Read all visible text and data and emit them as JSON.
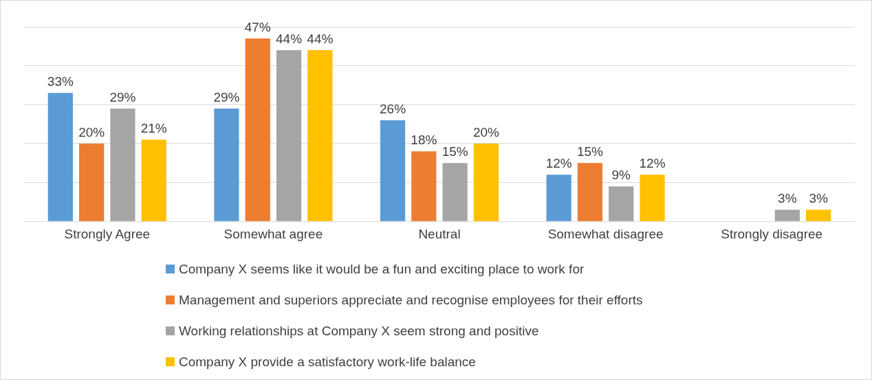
{
  "chart_data": {
    "type": "bar",
    "categories": [
      "Strongly Agree",
      "Somewhat agree",
      "Neutral",
      "Somewhat disagree",
      "Strongly disagree"
    ],
    "series": [
      {
        "name": "Company X seems like it would be a fun and exciting place to work for",
        "color": "#5b9bd5",
        "values": [
          33,
          29,
          26,
          12,
          null
        ],
        "value_labels": [
          "33%",
          "29%",
          "26%",
          "12%",
          null
        ]
      },
      {
        "name": "Management and superiors appreciate and recognise employees for their efforts",
        "color": "#ed7d31",
        "values": [
          20,
          47,
          18,
          15,
          null
        ],
        "value_labels": [
          "20%",
          "47%",
          "18%",
          "15%",
          null
        ]
      },
      {
        "name": "Working relationships at Company X seem strong and positive",
        "color": "#a5a5a5",
        "values": [
          29,
          44,
          15,
          9,
          3
        ],
        "value_labels": [
          "29%",
          "44%",
          "15%",
          "9%",
          "3%"
        ]
      },
      {
        "name": "Company X provide a satisfactory work-life balance",
        "color": "#ffc000",
        "values": [
          21,
          44,
          20,
          12,
          3
        ],
        "value_labels": [
          "21%",
          "44%",
          "20%",
          "12%",
          "3%"
        ]
      }
    ],
    "tick_labels": "x",
    "grid": "y",
    "legend": "bottom"
  }
}
